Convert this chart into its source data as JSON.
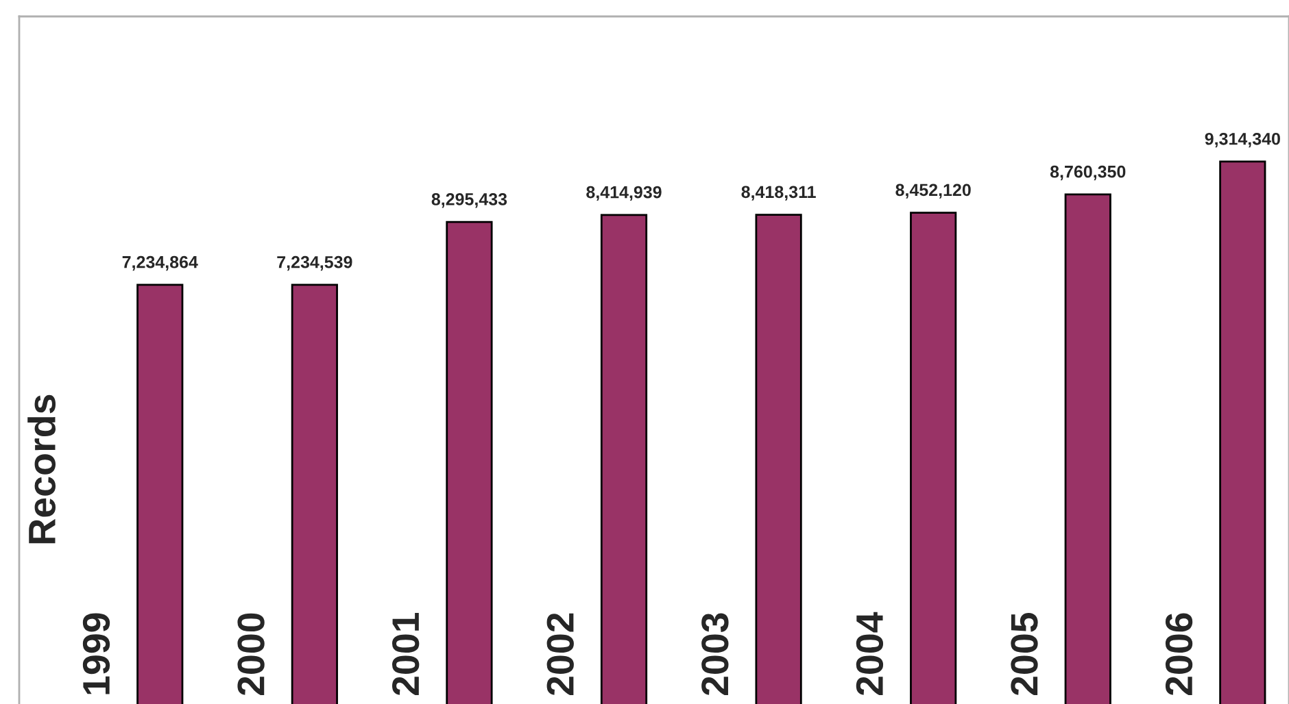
{
  "chart_data": {
    "type": "bar",
    "ylabel": "Records",
    "categories": [
      "1999",
      "2000",
      "2001",
      "2002",
      "2003",
      "2004",
      "2005",
      "2006"
    ],
    "values": [
      7234864,
      7234539,
      8295433,
      8414939,
      8418311,
      8452120,
      8760350,
      9314340
    ],
    "value_labels": [
      "7,234,864",
      "7,234,539",
      "8,295,433",
      "8,414,939",
      "8,418,311",
      "8,452,120",
      "8,760,350",
      "9,314,340"
    ],
    "color": "#993366",
    "tick_labels": "x"
  }
}
